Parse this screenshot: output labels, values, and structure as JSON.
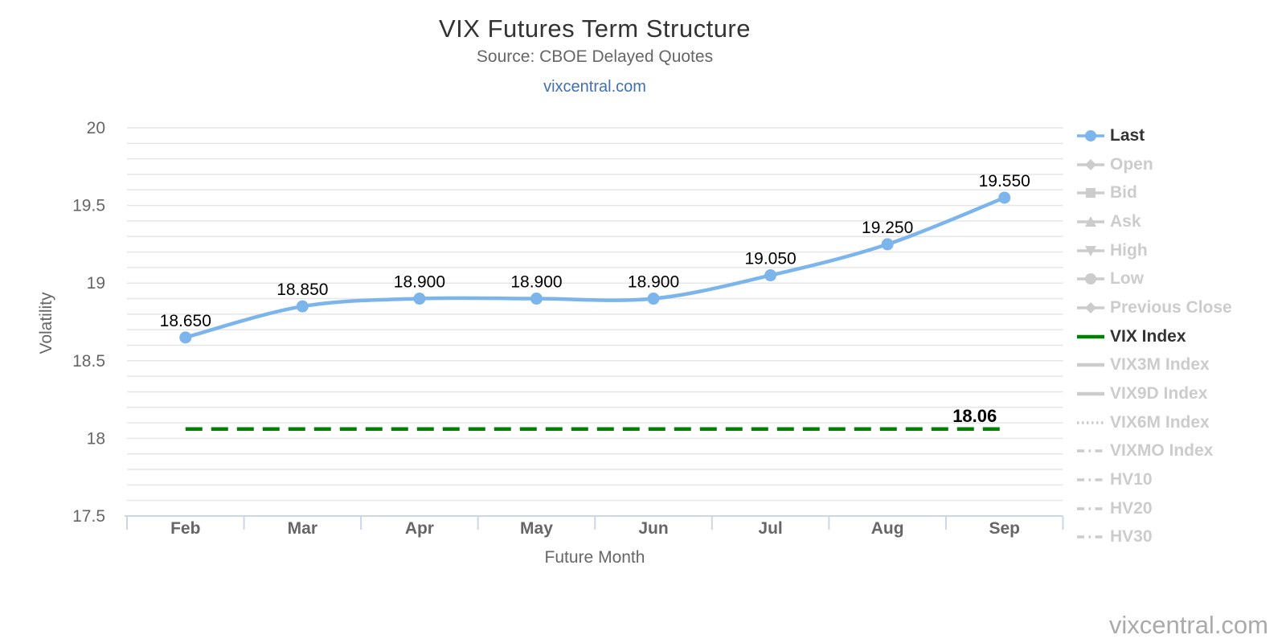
{
  "header": {
    "title": "VIX Futures Term Structure",
    "subtitle": "Source: CBOE Delayed Quotes",
    "link": "vixcentral.com"
  },
  "watermark": "vixcentral.com",
  "colors": {
    "series_blue": "#7cb5ec",
    "series_green": "#008000",
    "gridline": "#e6e6e6",
    "axis_line": "#ccd6eb",
    "axis_label": "#666666",
    "title": "#333333",
    "subtitle": "#666666",
    "link": "#4070b2",
    "data_label": "#000000",
    "legend_active_text": "#333333",
    "legend_disabled": "#cccccc",
    "watermark": "#aaaaaa"
  },
  "chart_data": {
    "type": "line",
    "title": "VIX Futures Term Structure",
    "subtitle": "Source: CBOE Delayed Quotes",
    "categories": [
      "Feb",
      "Mar",
      "Apr",
      "May",
      "Jun",
      "Jul",
      "Aug",
      "Sep"
    ],
    "series": [
      {
        "name": "Last",
        "type": "spline",
        "color": "#7cb5ec",
        "values": [
          18.65,
          18.85,
          18.9,
          18.9,
          18.9,
          19.05,
          19.25,
          19.55
        ],
        "point_labels": [
          "18.650",
          "18.850",
          "18.900",
          "18.900",
          "18.900",
          "19.050",
          "19.250",
          "19.550"
        ]
      },
      {
        "name": "VIX Index",
        "type": "horizontal-dashed-line",
        "color": "#008000",
        "value": 18.06,
        "point_label": "18.06"
      }
    ],
    "xlabel": "Future Month",
    "ylabel": "Volatility",
    "ylim": [
      17.5,
      20
    ],
    "yticks": [
      17.5,
      18,
      18.5,
      19,
      19.5,
      20
    ],
    "minor_gridline_step": 0.1,
    "grid": true,
    "legend_position": "right"
  },
  "legend": {
    "items": [
      {
        "label": "Last",
        "marker": "circle",
        "active": true,
        "color": "#7cb5ec"
      },
      {
        "label": "Open",
        "marker": "diamond",
        "active": false
      },
      {
        "label": "Bid",
        "marker": "square",
        "active": false
      },
      {
        "label": "Ask",
        "marker": "triangle-up",
        "active": false
      },
      {
        "label": "High",
        "marker": "triangle-down",
        "active": false
      },
      {
        "label": "Low",
        "marker": "circle",
        "active": false
      },
      {
        "label": "Previous Close",
        "marker": "diamond",
        "active": false
      },
      {
        "label": "VIX Index",
        "marker": "line",
        "active": true,
        "color": "#008000"
      },
      {
        "label": "VIX3M Index",
        "marker": "line",
        "active": false
      },
      {
        "label": "VIX9D Index",
        "marker": "line",
        "active": false
      },
      {
        "label": "VIX6M Index",
        "marker": "line-dotted",
        "active": false
      },
      {
        "label": "VIXMO Index",
        "marker": "line-dashdot",
        "active": false
      },
      {
        "label": "HV10",
        "marker": "line-dashdot",
        "active": false
      },
      {
        "label": "HV20",
        "marker": "line-dashdot",
        "active": false
      },
      {
        "label": "HV30",
        "marker": "line-dashdot",
        "active": false
      }
    ]
  }
}
